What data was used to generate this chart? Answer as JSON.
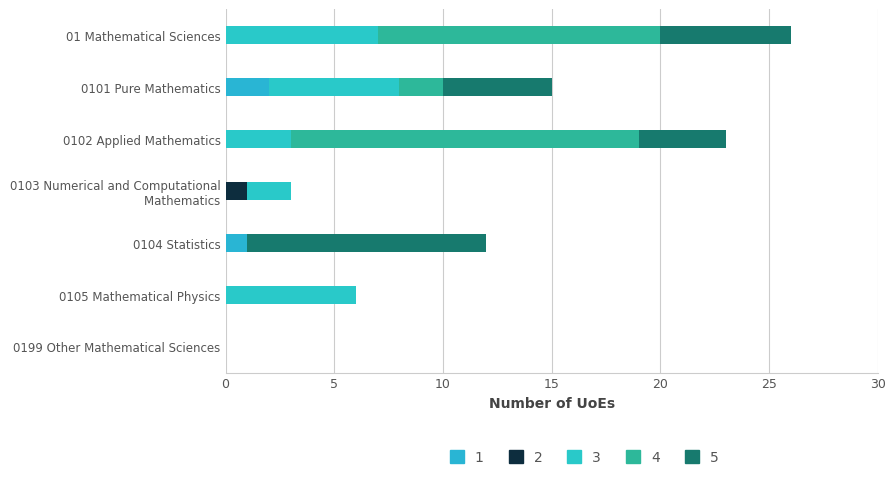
{
  "categories": [
    "01 Mathematical Sciences",
    "0101 Pure Mathematics",
    "0102 Applied Mathematics",
    "0103 Numerical and Computational\n        Mathematics",
    "0104 Statistics",
    "0105 Mathematical Physics",
    "0199 Other Mathematical Sciences"
  ],
  "series": {
    "1": [
      0,
      2,
      0,
      0,
      1,
      0,
      0
    ],
    "2": [
      0,
      0,
      0,
      1,
      0,
      0,
      0
    ],
    "3": [
      7,
      6,
      3,
      2,
      0,
      6,
      0
    ],
    "4": [
      13,
      2,
      16,
      0,
      0,
      0,
      0
    ],
    "5": [
      6,
      5,
      4,
      0,
      11,
      0,
      0
    ]
  },
  "colors": {
    "1": "#29B5D4",
    "2": "#0D2D3E",
    "3": "#29C9C9",
    "4": "#2DB89A",
    "5": "#177A6E"
  },
  "xlabel": "Number of UoEs",
  "xlim": [
    0,
    30
  ],
  "xticks": [
    0,
    5,
    10,
    15,
    20,
    25,
    30
  ],
  "legend_labels": [
    "1",
    "2",
    "3",
    "4",
    "5"
  ],
  "background_color": "#ffffff",
  "grid_color": "#cccccc",
  "bar_height": 0.35
}
